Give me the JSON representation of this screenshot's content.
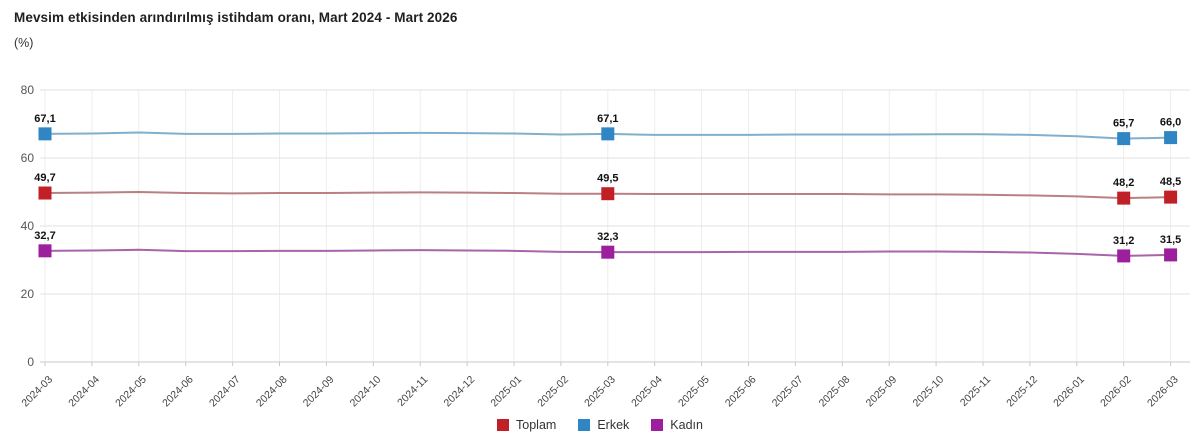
{
  "header": {
    "title": "Mevsim etkisinden arındırılmış istihdam oranı, Mart 2024 - Mart 2026",
    "subtitle": "(%)"
  },
  "chart_data": {
    "type": "line",
    "title": "Mevsim etkisinden arındırılmış istihdam oranı, Mart 2024 - Mart 2026",
    "subtitle_unit": "(%)",
    "x": [
      "2024-03",
      "2024-04",
      "2024-05",
      "2024-06",
      "2024-07",
      "2024-08",
      "2024-09",
      "2024-10",
      "2024-11",
      "2024-12",
      "2025-01",
      "2025-02",
      "2025-03",
      "2025-04",
      "2025-05",
      "2025-06",
      "2025-07",
      "2025-08",
      "2025-09",
      "2025-10",
      "2025-11",
      "2025-12",
      "2026-01",
      "2026-02",
      "2026-03"
    ],
    "ylim": [
      0,
      80
    ],
    "yticks": [
      0,
      20,
      40,
      60,
      80
    ],
    "grid": true,
    "legend_position": "bottom",
    "series": [
      {
        "name": "Toplam",
        "color": "#c02026",
        "line_color": "#b98082",
        "values": [
          49.7,
          49.8,
          50.0,
          49.7,
          49.6,
          49.7,
          49.7,
          49.8,
          49.9,
          49.8,
          49.7,
          49.5,
          49.5,
          49.4,
          49.4,
          49.4,
          49.4,
          49.4,
          49.3,
          49.3,
          49.2,
          49.0,
          48.7,
          48.2,
          48.5
        ],
        "labeled_points": {
          "0": "49,7",
          "12": "49,5",
          "23": "48,2",
          "24": "48,5"
        }
      },
      {
        "name": "Erkek",
        "color": "#2f86c3",
        "line_color": "#82afcd",
        "values": [
          67.1,
          67.2,
          67.5,
          67.1,
          67.1,
          67.2,
          67.2,
          67.3,
          67.4,
          67.3,
          67.2,
          66.9,
          67.1,
          66.8,
          66.8,
          66.8,
          66.9,
          66.9,
          66.9,
          67.0,
          67.0,
          66.8,
          66.4,
          65.7,
          66.0
        ],
        "labeled_points": {
          "0": "67,1",
          "12": "67,1",
          "23": "65,7",
          "24": "66,0"
        }
      },
      {
        "name": "Kadın",
        "color": "#9c1f9e",
        "line_color": "#a863aa",
        "values": [
          32.7,
          32.8,
          33.0,
          32.6,
          32.6,
          32.7,
          32.7,
          32.8,
          32.9,
          32.8,
          32.7,
          32.4,
          32.3,
          32.3,
          32.3,
          32.4,
          32.4,
          32.4,
          32.5,
          32.5,
          32.4,
          32.2,
          31.8,
          31.2,
          31.5
        ],
        "labeled_points": {
          "0": "32,7",
          "12": "32,3",
          "23": "31,2",
          "24": "31,5"
        }
      }
    ],
    "colors": {
      "grid_horizontal": "#e2e2e2",
      "grid_vertical": "#ededed",
      "axis_line": "#c8c8c8"
    }
  }
}
